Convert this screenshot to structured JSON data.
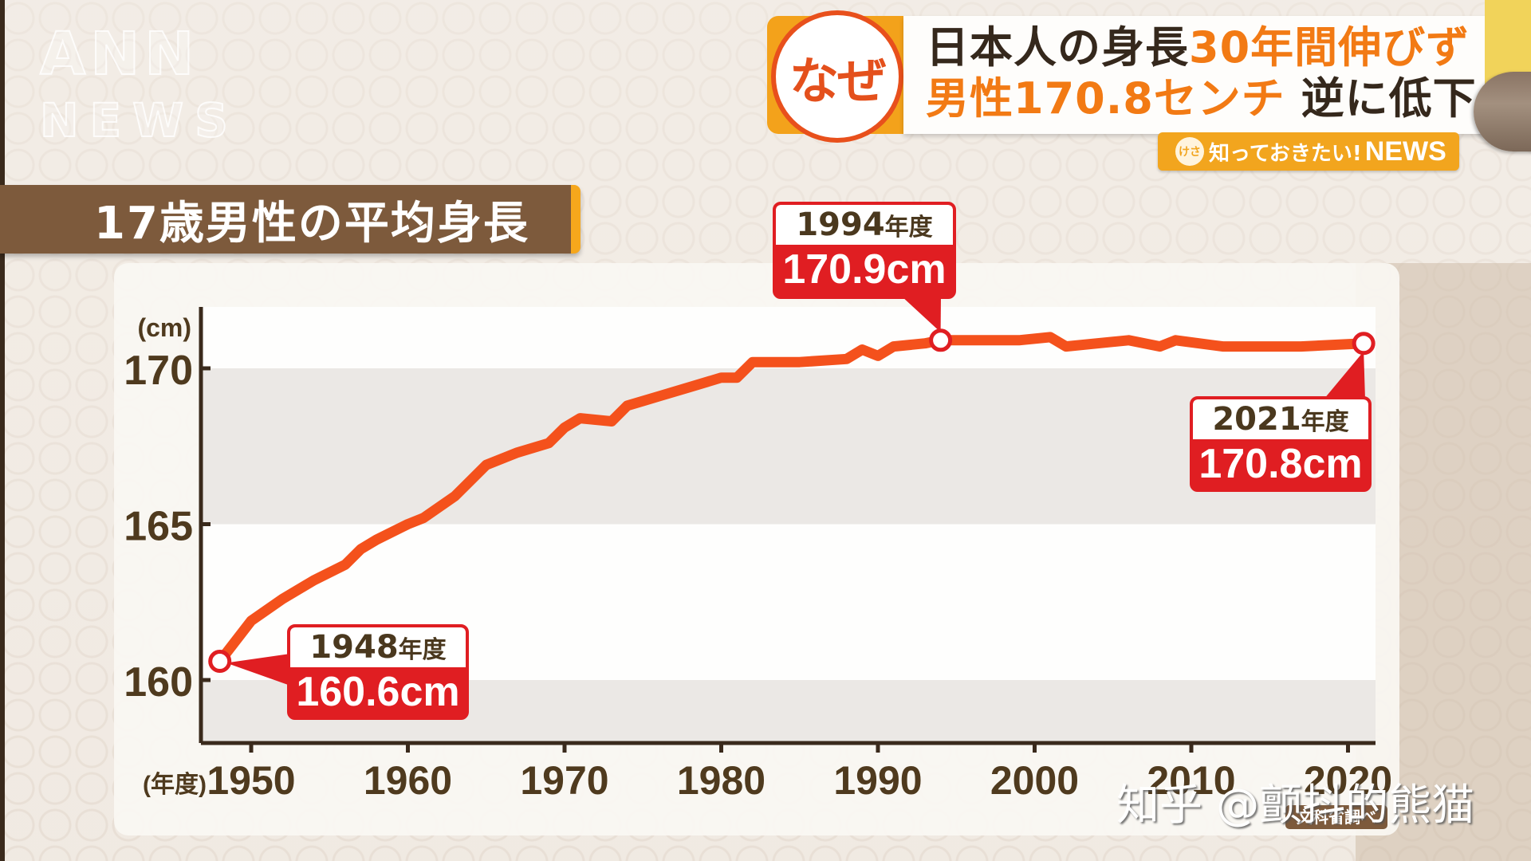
{
  "watermark_logo": {
    "line1": "ANN",
    "line2": "NEWS"
  },
  "headline": {
    "badge": "なぜ",
    "line1_dark": "日本人の身長",
    "line1_orange": "30年間伸びず",
    "line2_orange": "男性170.8センチ",
    "line2_dark": "逆に低下"
  },
  "program_badge": {
    "icon_text": "けさ",
    "text": "知っておきたい!",
    "news": "NEWS"
  },
  "chart_title": "17歳男性の平均身長",
  "colors": {
    "line": "#f4511c",
    "callout": "#e01e22",
    "title_bar": "#7d5a3c",
    "accent_orange": "#f27a14",
    "axis": "#3a2a1c"
  },
  "callouts": [
    {
      "year": "1948",
      "year_suffix": "年度",
      "value": "160.6cm"
    },
    {
      "year": "1994",
      "year_suffix": "年度",
      "value": "170.9cm"
    },
    {
      "year": "2021",
      "year_suffix": "年度",
      "value": "170.8cm"
    }
  ],
  "source": "文科省調べ",
  "overlay_watermark": "知乎 @颤抖的熊猫",
  "chart_data": {
    "type": "line",
    "title": "17歳男性の平均身長",
    "xlabel": "(年度)",
    "ylabel": "(cm)",
    "x_ticks": [
      1950,
      1960,
      1970,
      1980,
      1990,
      2000,
      2010,
      2020
    ],
    "y_ticks": [
      160,
      165,
      170
    ],
    "xlim": [
      1946,
      2024
    ],
    "ylim": [
      157.9,
      172.0
    ],
    "grid": "alternating horizontal bands",
    "legend": "none",
    "series": [
      {
        "name": "17歳男性の平均身長 (cm)",
        "x": [
          1948,
          1950,
          1952,
          1954,
          1956,
          1957,
          1958,
          1960,
          1961,
          1963,
          1965,
          1967,
          1969,
          1970,
          1971,
          1973,
          1974,
          1976,
          1978,
          1980,
          1981,
          1982,
          1985,
          1988,
          1989,
          1990,
          1991,
          1993,
          1994,
          1995,
          1999,
          2001,
          2002,
          2006,
          2008,
          2009,
          2012,
          2017,
          2021
        ],
        "values": [
          160.6,
          161.9,
          162.6,
          163.2,
          163.7,
          164.2,
          164.5,
          165.0,
          165.2,
          165.9,
          166.9,
          167.3,
          167.6,
          168.1,
          168.4,
          168.3,
          168.8,
          169.1,
          169.4,
          169.7,
          169.7,
          170.2,
          170.2,
          170.3,
          170.6,
          170.4,
          170.7,
          170.8,
          170.9,
          170.9,
          170.9,
          171.0,
          170.7,
          170.9,
          170.7,
          170.9,
          170.7,
          170.7,
          170.8
        ]
      }
    ],
    "annotations": [
      {
        "x": 1948,
        "y": 160.6,
        "text": "1948年度 160.6cm"
      },
      {
        "x": 1994,
        "y": 170.9,
        "text": "1994年度 170.9cm"
      },
      {
        "x": 2021,
        "y": 170.8,
        "text": "2021年度 170.8cm"
      }
    ],
    "source": "文科省調べ"
  }
}
